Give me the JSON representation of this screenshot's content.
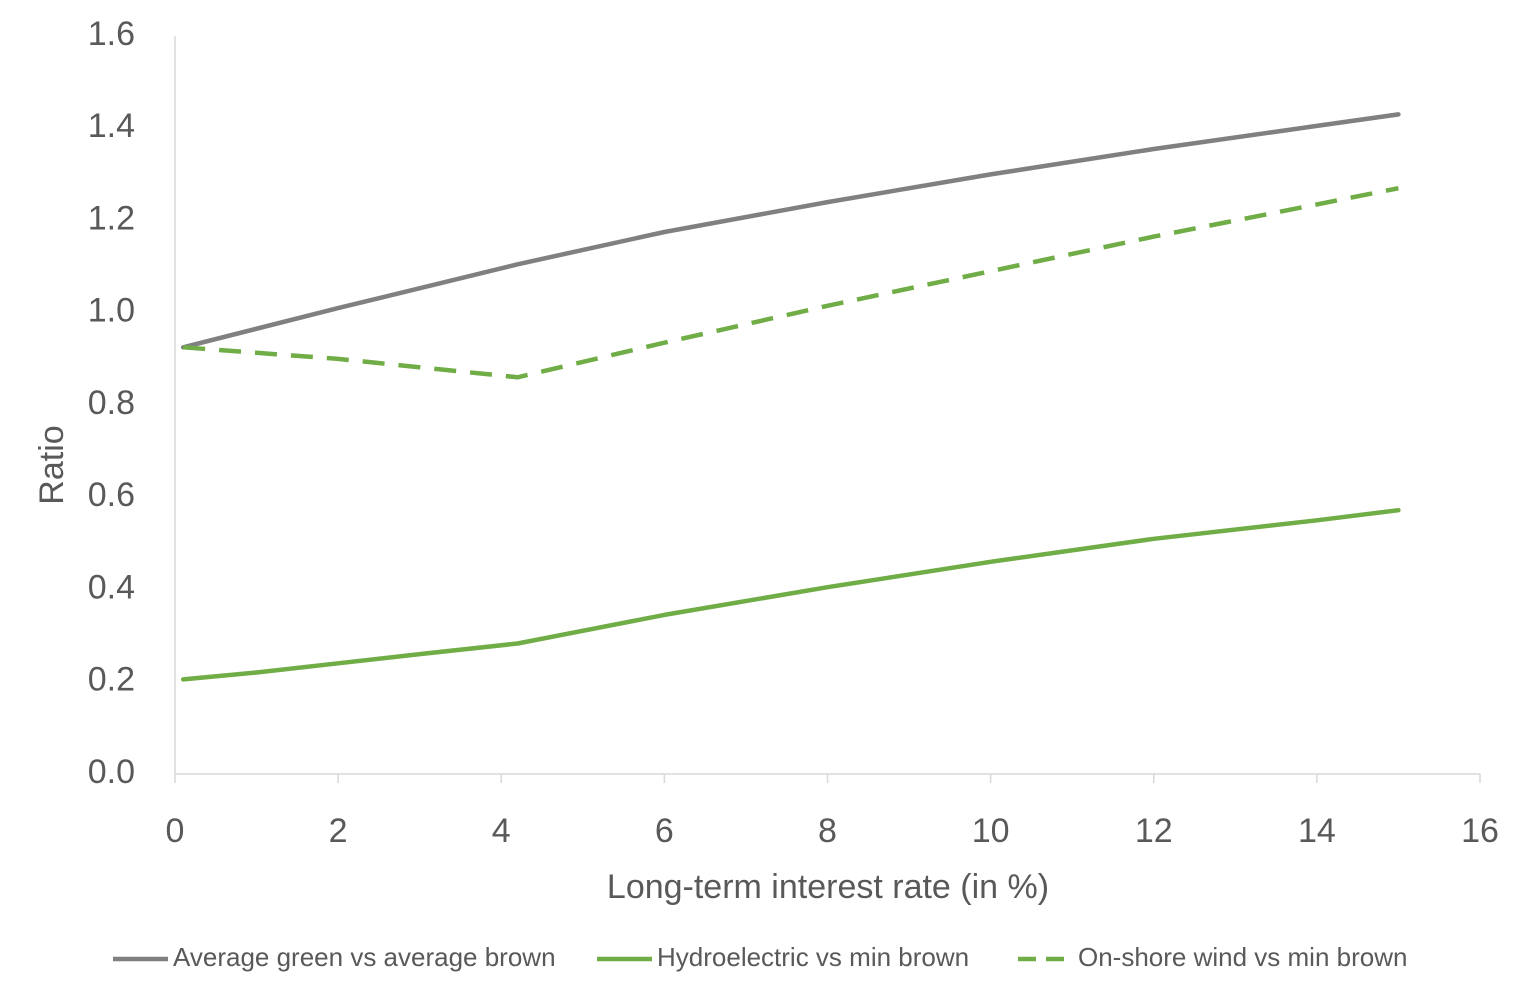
{
  "chart_data": {
    "type": "line",
    "title": "",
    "xlabel": "Long-term interest rate (in %)",
    "ylabel": "Ratio",
    "xlim": [
      0,
      16
    ],
    "ylim": [
      0,
      1.6
    ],
    "x_ticks": [
      "0",
      "2",
      "4",
      "6",
      "8",
      "10",
      "12",
      "14",
      "16"
    ],
    "y_ticks": [
      "0.0",
      "0.2",
      "0.4",
      "0.6",
      "0.8",
      "1.0",
      "1.2",
      "1.4",
      "1.6"
    ],
    "grid": false,
    "legend_position": "bottom",
    "series": [
      {
        "name": "Average green vs average brown",
        "color": "#808080",
        "style": "solid",
        "x": [
          0.1,
          2,
          4.2,
          6,
          8,
          10,
          12,
          14,
          15
        ],
        "y": [
          0.925,
          1.01,
          1.105,
          1.175,
          1.24,
          1.3,
          1.355,
          1.405,
          1.43
        ]
      },
      {
        "name": "Hydroelectric vs min brown",
        "color": "#70AD47",
        "style": "solid",
        "x": [
          0.1,
          1,
          2,
          3,
          4.2,
          6,
          8,
          10,
          12,
          14,
          15
        ],
        "y": [
          0.205,
          0.22,
          0.24,
          0.26,
          0.283,
          0.345,
          0.405,
          0.46,
          0.51,
          0.55,
          0.572
        ]
      },
      {
        "name": "On-shore wind vs min brown",
        "color": "#70AD47",
        "style": "dashed",
        "x": [
          0.1,
          2,
          4.2,
          6,
          8,
          10,
          12,
          14,
          15
        ],
        "y": [
          0.925,
          0.9,
          0.86,
          0.935,
          1.015,
          1.09,
          1.165,
          1.235,
          1.27
        ]
      }
    ]
  }
}
